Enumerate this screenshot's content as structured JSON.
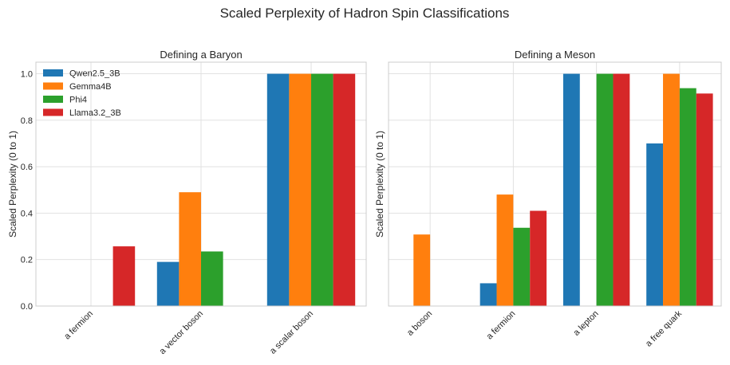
{
  "figure": {
    "title": "Scaled Perplexity of Hadron Spin Classifications"
  },
  "legend": {
    "placement": "top-left of left panel",
    "entries": [
      {
        "name": "Qwen2.5_3B",
        "color": "#1f77b4"
      },
      {
        "name": "Gemma4B",
        "color": "#ff7f0e"
      },
      {
        "name": "Phi4",
        "color": "#2ca02c"
      },
      {
        "name": "Llama3.2_3B",
        "color": "#d62728"
      }
    ]
  },
  "chart_data": [
    {
      "type": "bar",
      "title": "Defining a Baryon",
      "xlabel": "",
      "ylabel": "Scaled Perplexity (0 to 1)",
      "ylim": [
        0,
        1.05
      ],
      "yticks": [
        "0.0",
        "0.2",
        "0.4",
        "0.6",
        "0.8",
        "1.0"
      ],
      "grid": true,
      "categories": [
        "a fermion",
        "a vector boson",
        "a scalar boson"
      ],
      "series": [
        {
          "name": "Qwen2.5_3B",
          "color": "#1f77b4",
          "values": [
            0.0,
            0.19,
            1.0
          ]
        },
        {
          "name": "Gemma4B",
          "color": "#ff7f0e",
          "values": [
            0.0,
            0.49,
            1.0
          ]
        },
        {
          "name": "Phi4",
          "color": "#2ca02c",
          "values": [
            0.0,
            0.235,
            1.0
          ]
        },
        {
          "name": "Llama3.2_3B",
          "color": "#d62728",
          "values": [
            0.257,
            0.0,
            1.0
          ]
        }
      ]
    },
    {
      "type": "bar",
      "title": "Defining a Meson",
      "xlabel": "",
      "ylabel": "Scaled Perplexity (0 to 1)",
      "ylim": [
        0,
        1.05
      ],
      "grid": true,
      "categories": [
        "a boson",
        "a fermion",
        "a lepton",
        "a free quark"
      ],
      "series": [
        {
          "name": "Qwen2.5_3B",
          "color": "#1f77b4",
          "values": [
            0.0,
            0.098,
            1.0,
            0.7
          ]
        },
        {
          "name": "Gemma4B",
          "color": "#ff7f0e",
          "values": [
            0.308,
            0.48,
            0.0,
            1.0
          ]
        },
        {
          "name": "Phi4",
          "color": "#2ca02c",
          "values": [
            0.0,
            0.337,
            1.0,
            0.938
          ]
        },
        {
          "name": "Llama3.2_3B",
          "color": "#d62728",
          "values": [
            0.0,
            0.41,
            1.0,
            0.915
          ]
        }
      ]
    }
  ]
}
